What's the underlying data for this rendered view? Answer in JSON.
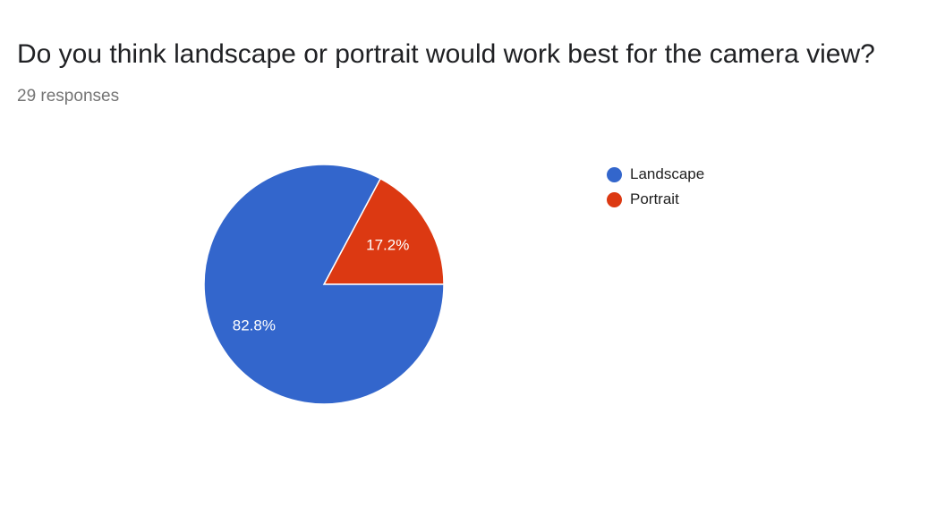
{
  "question": {
    "title": "Do you think landscape or portrait would work best for the camera view?",
    "response_count": "29 responses"
  },
  "chart_data": {
    "type": "pie",
    "title": "Do you think landscape or portrait would work best for the camera view?",
    "categories": [
      "Landscape",
      "Portrait"
    ],
    "values": [
      82.8,
      17.2
    ],
    "labels": [
      "82.8%",
      "17.2%"
    ],
    "colors": [
      "#3366cc",
      "#dc3912"
    ],
    "legend_position": "right"
  }
}
